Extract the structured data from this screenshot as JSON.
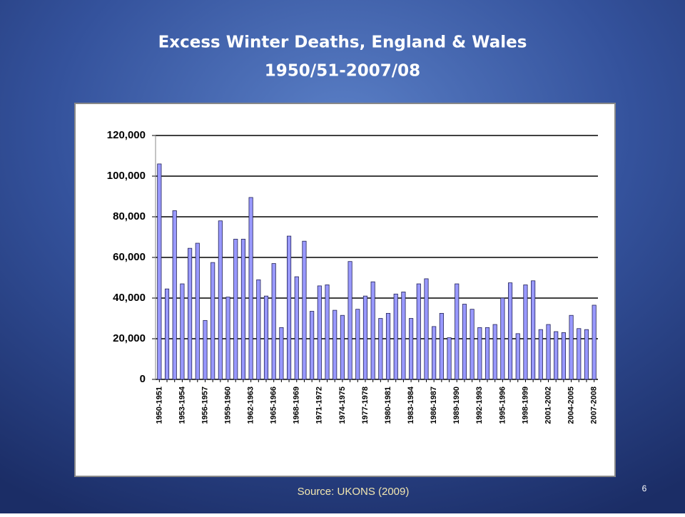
{
  "chart_data": {
    "type": "bar",
    "title": "Excess Winter Deaths, England & Wales",
    "subtitle": "1950/51-2007/08",
    "source": "Source:  UKONS (2009)",
    "page_number": "6",
    "color": "#9999ff",
    "grid": true,
    "categories": [
      "1950-1951",
      null,
      null,
      "1953-1954",
      null,
      null,
      "1956-1957",
      null,
      null,
      "1959-1960",
      null,
      null,
      "1962-1963",
      null,
      null,
      "1965-1966",
      null,
      null,
      "1968-1969",
      null,
      null,
      "1971-1972",
      null,
      null,
      "1974-1975",
      null,
      null,
      "1977-1978",
      null,
      null,
      "1980-1981",
      null,
      null,
      "1983-1984",
      null,
      null,
      "1986-1987",
      null,
      null,
      "1989-1990",
      null,
      null,
      "1992-1993",
      null,
      null,
      "1995-1996",
      null,
      null,
      "1998-1999",
      null,
      null,
      "2001-2002",
      null,
      null,
      "2004-2005",
      null,
      null,
      "2007-2008"
    ],
    "values": [
      106000,
      44500,
      83000,
      47000,
      64500,
      67000,
      29000,
      57500,
      78000,
      40500,
      69000,
      69000,
      89500,
      49000,
      41000,
      57000,
      25500,
      70500,
      50500,
      68000,
      33500,
      46000,
      46500,
      34000,
      31500,
      58000,
      34500,
      41000,
      48000,
      30000,
      32500,
      42000,
      43000,
      30000,
      47000,
      49500,
      26000,
      32500,
      20500,
      47000,
      37000,
      34500,
      25500,
      25500,
      27000,
      40000,
      47500,
      22500,
      46500,
      48500,
      24500,
      27000,
      23500,
      23000,
      31500,
      25000,
      24500,
      36500
    ],
    "ylim": [
      0,
      120000
    ],
    "yticks": [
      0,
      {
        "value": 20000,
        "label": "20,000"
      },
      {
        "value": 40000,
        "label": "40,000"
      },
      {
        "value": 60000,
        "label": "60,000"
      },
      {
        "value": 80000,
        "label": "80,000"
      },
      {
        "value": 100000,
        "label": "100,000"
      },
      {
        "value": 120000,
        "label": "120,000"
      }
    ]
  }
}
